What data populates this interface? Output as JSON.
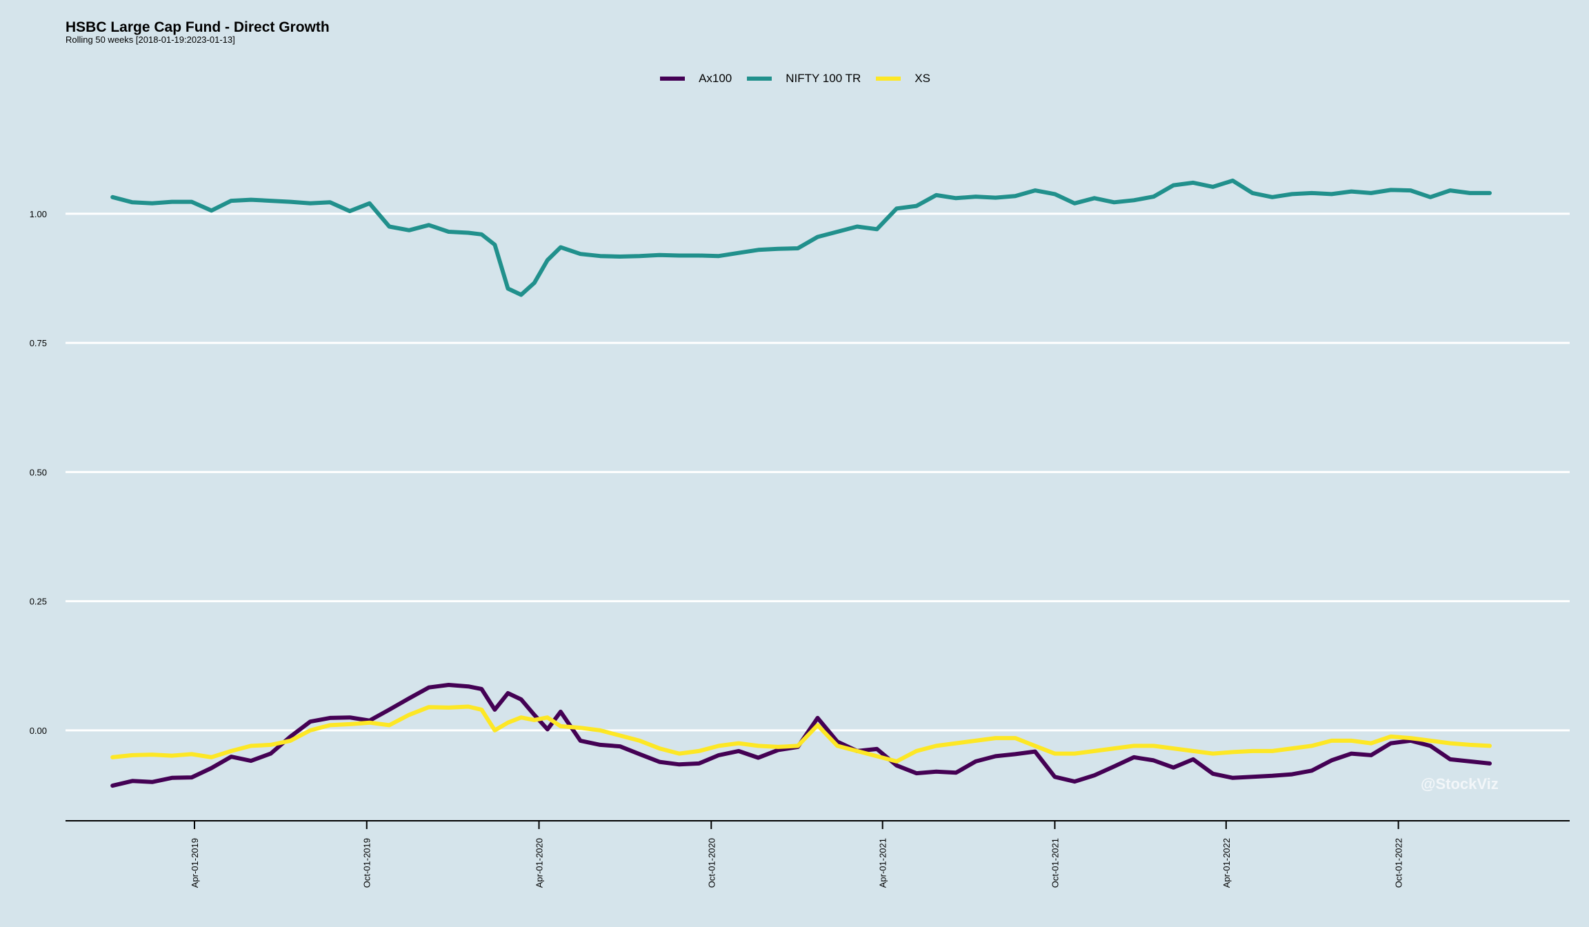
{
  "chart_data": {
    "type": "line",
    "title": "HSBC Large Cap Fund - Direct Growth",
    "subtitle": "Rolling 50 weeks [2018-01-19:2023-01-13]",
    "xlabel": "",
    "ylabel": "",
    "ylim": [
      -0.175,
      1.2
    ],
    "xlim": [
      "2018-11-15",
      "2023-04-01"
    ],
    "y_ticks": [
      0.0,
      0.25,
      0.5,
      0.75,
      1.0
    ],
    "y_tick_labels": [
      "0.00",
      "0.25",
      "0.50",
      "0.75",
      "1.00"
    ],
    "x_ticks": [
      "2019-04-01",
      "2019-10-01",
      "2020-04-01",
      "2020-10-01",
      "2021-04-01",
      "2021-10-01",
      "2022-04-01",
      "2022-10-01"
    ],
    "x_tick_labels": [
      "Apr-01-2019",
      "Oct-01-2019",
      "Apr-01-2020",
      "Oct-01-2020",
      "Apr-01-2021",
      "Oct-01-2021",
      "Apr-01-2022",
      "Oct-01-2022"
    ],
    "grid": "horizontal",
    "legend": "top-center",
    "series": [
      {
        "name": "Ax100",
        "color": "#440154",
        "x": [
          "2019-01-04",
          "2019-01-25",
          "2019-02-15",
          "2019-03-08",
          "2019-03-29",
          "2019-04-19",
          "2019-05-10",
          "2019-05-31",
          "2019-06-21",
          "2019-07-12",
          "2019-08-02",
          "2019-08-23",
          "2019-09-13",
          "2019-10-04",
          "2019-10-25",
          "2019-11-15",
          "2019-12-06",
          "2019-12-27",
          "2020-01-17",
          "2020-01-31",
          "2020-02-14",
          "2020-02-28",
          "2020-03-13",
          "2020-03-27",
          "2020-04-10",
          "2020-04-24",
          "2020-05-15",
          "2020-06-05",
          "2020-06-26",
          "2020-07-17",
          "2020-08-07",
          "2020-08-28",
          "2020-09-18",
          "2020-10-09",
          "2020-10-30",
          "2020-11-20",
          "2020-12-11",
          "2021-01-01",
          "2021-01-22",
          "2021-02-12",
          "2021-03-05",
          "2021-03-26",
          "2021-04-16",
          "2021-05-07",
          "2021-05-28",
          "2021-06-18",
          "2021-07-09",
          "2021-07-30",
          "2021-08-20",
          "2021-09-10",
          "2021-10-01",
          "2021-10-22",
          "2021-11-12",
          "2021-12-03",
          "2021-12-24",
          "2022-01-14",
          "2022-02-04",
          "2022-02-25",
          "2022-03-18",
          "2022-04-08",
          "2022-04-29",
          "2022-05-20",
          "2022-06-10",
          "2022-07-01",
          "2022-07-22",
          "2022-08-12",
          "2022-09-02",
          "2022-09-23",
          "2022-10-14",
          "2022-11-04",
          "2022-11-25",
          "2022-12-16",
          "2023-01-06"
        ],
        "y": [
          -0.107,
          -0.098,
          -0.1,
          -0.092,
          -0.091,
          -0.073,
          -0.051,
          -0.059,
          -0.045,
          -0.012,
          0.017,
          0.024,
          0.025,
          0.019,
          0.04,
          0.062,
          0.083,
          0.088,
          0.085,
          0.08,
          0.04,
          0.072,
          0.06,
          0.03,
          0.002,
          0.036,
          -0.02,
          -0.028,
          -0.031,
          -0.046,
          -0.061,
          -0.066,
          -0.064,
          -0.048,
          -0.04,
          -0.053,
          -0.038,
          -0.032,
          0.024,
          -0.022,
          -0.04,
          -0.036,
          -0.068,
          -0.083,
          -0.08,
          -0.082,
          -0.06,
          -0.05,
          -0.046,
          -0.041,
          -0.09,
          -0.099,
          -0.087,
          -0.07,
          -0.052,
          -0.058,
          -0.072,
          -0.056,
          -0.084,
          -0.092,
          -0.09,
          -0.088,
          -0.085,
          -0.078,
          -0.058,
          -0.045,
          -0.048,
          -0.025,
          -0.02,
          -0.03,
          -0.056,
          -0.06,
          -0.064
        ]
      },
      {
        "name": "NIFTY 100 TR",
        "color": "#21908c",
        "x": [
          "2019-01-04",
          "2019-01-25",
          "2019-02-15",
          "2019-03-08",
          "2019-03-29",
          "2019-04-19",
          "2019-05-10",
          "2019-05-31",
          "2019-06-21",
          "2019-07-12",
          "2019-08-02",
          "2019-08-23",
          "2019-09-13",
          "2019-10-04",
          "2019-10-25",
          "2019-11-15",
          "2019-12-06",
          "2019-12-27",
          "2020-01-17",
          "2020-01-31",
          "2020-02-14",
          "2020-02-28",
          "2020-03-13",
          "2020-03-27",
          "2020-04-10",
          "2020-04-24",
          "2020-05-15",
          "2020-06-05",
          "2020-06-26",
          "2020-07-17",
          "2020-08-07",
          "2020-08-28",
          "2020-09-18",
          "2020-10-09",
          "2020-10-30",
          "2020-11-20",
          "2020-12-11",
          "2021-01-01",
          "2021-01-22",
          "2021-02-12",
          "2021-03-05",
          "2021-03-26",
          "2021-04-16",
          "2021-05-07",
          "2021-05-28",
          "2021-06-18",
          "2021-07-09",
          "2021-07-30",
          "2021-08-20",
          "2021-09-10",
          "2021-10-01",
          "2021-10-22",
          "2021-11-12",
          "2021-12-03",
          "2021-12-24",
          "2022-01-14",
          "2022-02-04",
          "2022-02-25",
          "2022-03-18",
          "2022-04-08",
          "2022-04-29",
          "2022-05-20",
          "2022-06-10",
          "2022-07-01",
          "2022-07-22",
          "2022-08-12",
          "2022-09-02",
          "2022-09-23",
          "2022-10-14",
          "2022-11-04",
          "2022-11-25",
          "2022-12-16",
          "2023-01-06"
        ],
        "y": [
          1.032,
          1.022,
          1.02,
          1.023,
          1.023,
          1.006,
          1.025,
          1.027,
          1.025,
          1.023,
          1.02,
          1.022,
          1.005,
          1.02,
          0.975,
          0.968,
          0.978,
          0.965,
          0.963,
          0.96,
          0.94,
          0.855,
          0.843,
          0.866,
          0.91,
          0.935,
          0.922,
          0.918,
          0.917,
          0.918,
          0.92,
          0.919,
          0.919,
          0.918,
          0.924,
          0.93,
          0.932,
          0.933,
          0.955,
          0.965,
          0.975,
          0.97,
          1.01,
          1.015,
          1.036,
          1.03,
          1.033,
          1.031,
          1.034,
          1.045,
          1.038,
          1.02,
          1.03,
          1.022,
          1.026,
          1.033,
          1.055,
          1.06,
          1.052,
          1.064,
          1.04,
          1.032,
          1.038,
          1.04,
          1.038,
          1.043,
          1.04,
          1.046,
          1.045,
          1.032,
          1.045,
          1.04,
          1.04
        ]
      },
      {
        "name": "XS",
        "color": "#fde725",
        "x": [
          "2019-01-04",
          "2019-01-25",
          "2019-02-15",
          "2019-03-08",
          "2019-03-29",
          "2019-04-19",
          "2019-05-10",
          "2019-05-31",
          "2019-06-21",
          "2019-07-12",
          "2019-08-02",
          "2019-08-23",
          "2019-09-13",
          "2019-10-04",
          "2019-10-25",
          "2019-11-15",
          "2019-12-06",
          "2019-12-27",
          "2020-01-17",
          "2020-01-31",
          "2020-02-14",
          "2020-02-28",
          "2020-03-13",
          "2020-03-27",
          "2020-04-10",
          "2020-04-24",
          "2020-05-15",
          "2020-06-05",
          "2020-06-26",
          "2020-07-17",
          "2020-08-07",
          "2020-08-28",
          "2020-09-18",
          "2020-10-09",
          "2020-10-30",
          "2020-11-20",
          "2020-12-11",
          "2021-01-01",
          "2021-01-22",
          "2021-02-12",
          "2021-03-05",
          "2021-03-26",
          "2021-04-16",
          "2021-05-07",
          "2021-05-28",
          "2021-06-18",
          "2021-07-09",
          "2021-07-30",
          "2021-08-20",
          "2021-09-10",
          "2021-10-01",
          "2021-10-22",
          "2021-11-12",
          "2021-12-03",
          "2021-12-24",
          "2022-01-14",
          "2022-02-04",
          "2022-02-25",
          "2022-03-18",
          "2022-04-08",
          "2022-04-29",
          "2022-05-20",
          "2022-06-10",
          "2022-07-01",
          "2022-07-22",
          "2022-08-12",
          "2022-09-02",
          "2022-09-23",
          "2022-10-14",
          "2022-11-04",
          "2022-11-25",
          "2022-12-16",
          "2023-01-06"
        ],
        "y": [
          -0.052,
          -0.048,
          -0.047,
          -0.049,
          -0.046,
          -0.052,
          -0.04,
          -0.03,
          -0.028,
          -0.02,
          0.0,
          0.01,
          0.012,
          0.015,
          0.01,
          0.03,
          0.045,
          0.044,
          0.046,
          0.04,
          0.0,
          0.015,
          0.025,
          0.02,
          0.025,
          0.008,
          0.005,
          0.0,
          -0.01,
          -0.02,
          -0.035,
          -0.045,
          -0.04,
          -0.03,
          -0.025,
          -0.03,
          -0.032,
          -0.03,
          0.01,
          -0.03,
          -0.04,
          -0.05,
          -0.06,
          -0.04,
          -0.03,
          -0.025,
          -0.02,
          -0.015,
          -0.015,
          -0.03,
          -0.045,
          -0.045,
          -0.04,
          -0.035,
          -0.03,
          -0.03,
          -0.035,
          -0.04,
          -0.045,
          -0.042,
          -0.04,
          -0.04,
          -0.035,
          -0.03,
          -0.02,
          -0.02,
          -0.025,
          -0.012,
          -0.015,
          -0.02,
          -0.025,
          -0.028,
          -0.03
        ]
      }
    ]
  },
  "watermark": "@StockViz"
}
